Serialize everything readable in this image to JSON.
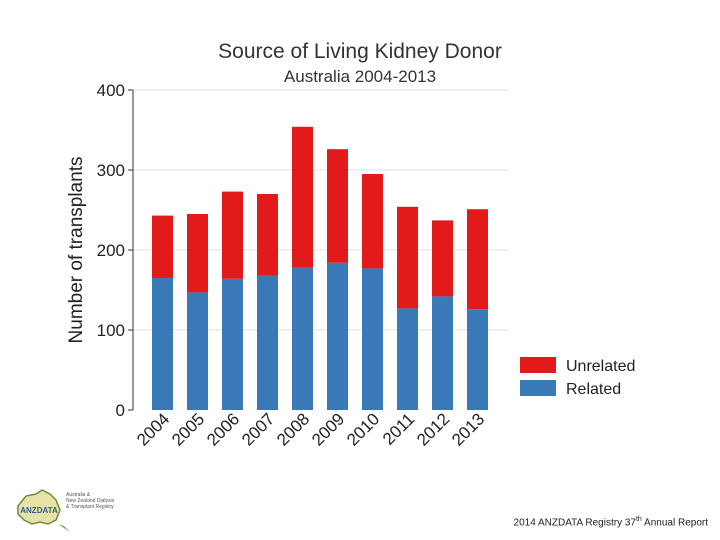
{
  "chart_data": {
    "type": "bar",
    "stacked": true,
    "title": "Source of Living Kidney Donor",
    "subtitle": "Australia 2004-2013",
    "xlabel": "",
    "ylabel": "Number of transplants",
    "categories": [
      "2004",
      "2005",
      "2006",
      "2007",
      "2008",
      "2009",
      "2010",
      "2011",
      "2012",
      "2013"
    ],
    "series": [
      {
        "name": "Related",
        "color": "#3a79b8",
        "values": [
          165,
          147,
          164,
          168,
          178,
          184,
          177,
          127,
          142,
          126
        ]
      },
      {
        "name": "Unrelated",
        "color": "#e31a1c",
        "values": [
          78,
          98,
          109,
          102,
          176,
          142,
          118,
          127,
          95,
          125
        ]
      }
    ],
    "ylim": [
      0,
      400
    ],
    "yticks": [
      0,
      100,
      200,
      300,
      400
    ],
    "grid": true,
    "legend": {
      "position": "right-bottom",
      "entries": [
        "Unrelated",
        "Related"
      ]
    }
  },
  "logo": {
    "mark": "ANZDATA",
    "lines": [
      "Australia &",
      "New Zealand Dialysis",
      "& Transplant Registry"
    ]
  },
  "footer": {
    "prefix": "2014 ANZDATA Registry 37",
    "sup": "th",
    "suffix": " Annual Report"
  }
}
